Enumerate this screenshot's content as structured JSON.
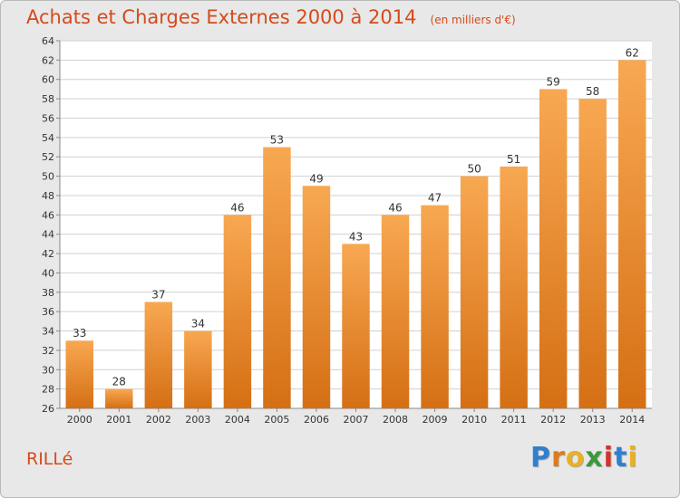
{
  "chart_data": {
    "type": "bar",
    "title": "Achats et Charges Externes 2000 à 2014",
    "subtitle": "(en milliers d'€)",
    "categories": [
      "2000",
      "2001",
      "2002",
      "2003",
      "2004",
      "2005",
      "2006",
      "2007",
      "2008",
      "2009",
      "2010",
      "2011",
      "2012",
      "2013",
      "2014"
    ],
    "values": [
      33,
      28,
      37,
      34,
      46,
      53,
      49,
      43,
      46,
      47,
      50,
      51,
      59,
      58,
      62
    ],
    "ylim": [
      26,
      64
    ],
    "yticks": [
      26,
      28,
      30,
      32,
      34,
      36,
      38,
      40,
      42,
      44,
      46,
      48,
      50,
      52,
      54,
      56,
      58,
      60,
      62,
      64
    ],
    "grid": true,
    "xlabel": "",
    "ylabel": "",
    "bar_color_top": "#f8a852",
    "bar_color_bottom": "#d56f14"
  },
  "place": "RILLé",
  "logo": {
    "letters": [
      "P",
      "r",
      "o",
      "x",
      "i",
      "t",
      "i"
    ],
    "colors": [
      "#2f7fcf",
      "#e07a18",
      "#e8b022",
      "#3a9a3a",
      "#d8302a",
      "#2f7fcf",
      "#e8b022"
    ]
  },
  "colors": {
    "title": "#d44b1b",
    "plot_background": "#ffffff",
    "grid": "#d0d0d0"
  }
}
